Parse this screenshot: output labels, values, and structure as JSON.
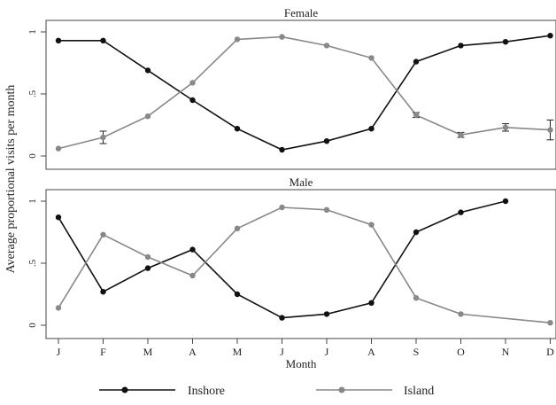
{
  "chart_data": {
    "type": "line",
    "ylabel": "Average proportional visits per month",
    "xlabel": "Month",
    "categories": [
      "J",
      "F",
      "M",
      "A",
      "M",
      "J",
      "J",
      "A",
      "S",
      "O",
      "N",
      "D"
    ],
    "yticks": [
      "0",
      ".5",
      "1"
    ],
    "ylim": [
      0,
      1
    ],
    "colors": {
      "Inshore": "#111111",
      "Island": "#888888"
    },
    "legend_position": "bottom",
    "legend": [
      {
        "name": "Inshore",
        "color": "#111111"
      },
      {
        "name": "Island",
        "color": "#888888"
      }
    ],
    "panels": [
      {
        "title": "Female",
        "series": [
          {
            "name": "Inshore",
            "values": [
              0.93,
              0.93,
              0.69,
              0.45,
              0.22,
              0.05,
              0.12,
              0.22,
              0.76,
              0.89,
              0.92,
              0.97
            ]
          },
          {
            "name": "Island",
            "values": [
              0.06,
              0.15,
              0.32,
              0.59,
              0.94,
              0.96,
              0.89,
              0.79,
              0.33,
              0.17,
              0.23,
              0.21
            ],
            "error": [
              0.01,
              0.05,
              0.01,
              0.01,
              0.01,
              0.01,
              0.01,
              0.01,
              0.02,
              0.02,
              0.03,
              0.08
            ]
          }
        ]
      },
      {
        "title": "Male",
        "series": [
          {
            "name": "Inshore",
            "values": [
              0.87,
              0.27,
              0.46,
              0.61,
              0.25,
              0.06,
              0.09,
              0.18,
              0.75,
              0.91,
              1.0,
              null
            ]
          },
          {
            "name": "Island",
            "values": [
              0.14,
              0.73,
              0.55,
              0.4,
              0.78,
              0.95,
              0.93,
              0.81,
              0.22,
              0.09,
              null,
              0.02
            ]
          }
        ]
      }
    ]
  }
}
